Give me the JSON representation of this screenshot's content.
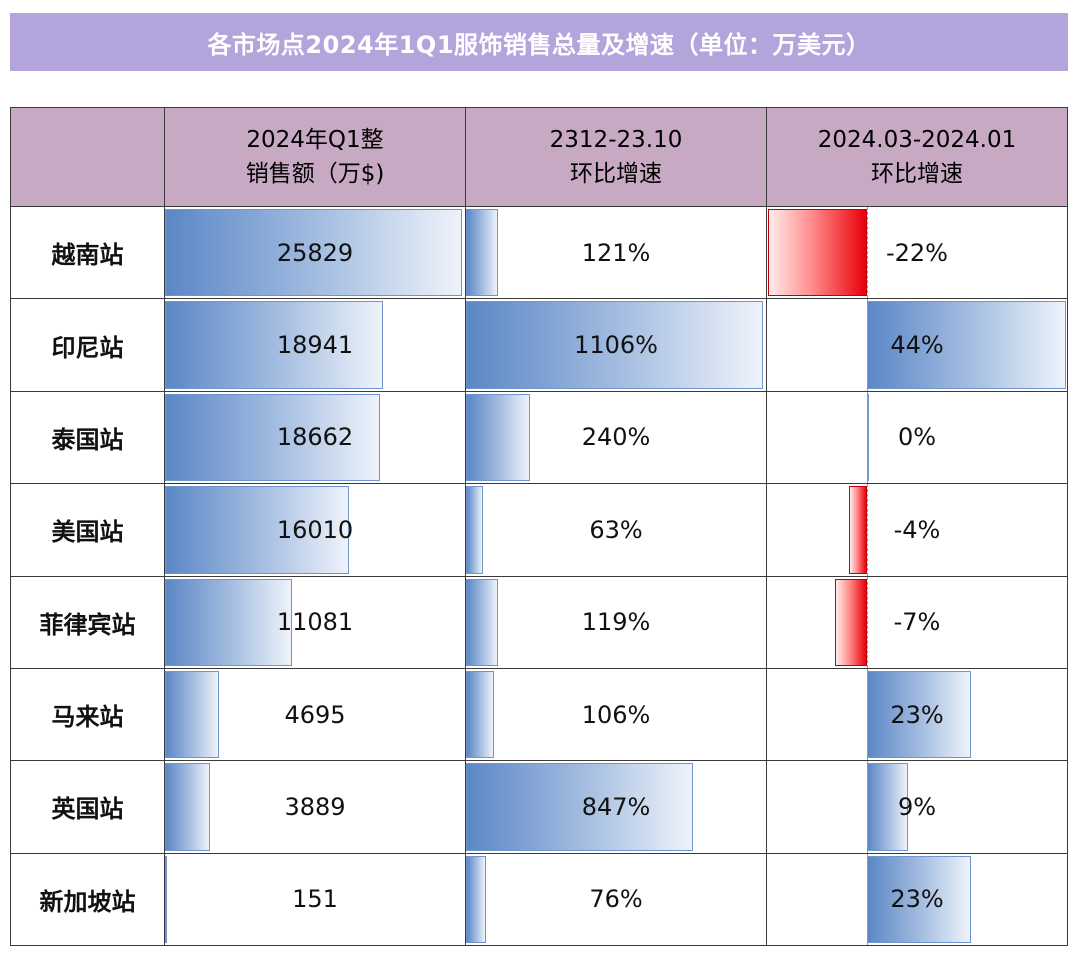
{
  "title": "各市场点2024年1Q1服饰销售总量及增速（单位：万美元）",
  "colors": {
    "title_bg": "#b3a5dc",
    "header_bg": "#c7a9c4",
    "positive_bar": "#5b87c6",
    "negative_bar": "#e8000a"
  },
  "chart_data": {
    "type": "table",
    "title": "各市场点2024年1Q1服饰销售总量及增速（单位：万美元）",
    "columns": [
      {
        "key": "sales",
        "header_line1": "2024年Q1整",
        "header_line2": "销售额（万$)"
      },
      {
        "key": "growth_a",
        "header_line1": "2312-23.10",
        "header_line2": "环比增速"
      },
      {
        "key": "growth_b",
        "header_line1": "2024.03-2024.01",
        "header_line2": "环比增速"
      }
    ],
    "rows": [
      {
        "market": "越南站",
        "sales": 25829,
        "sales_label": "25829",
        "growth_a": 121,
        "growth_a_label": "121%",
        "growth_b": -22,
        "growth_b_label": "-22%"
      },
      {
        "market": "印尼站",
        "sales": 18941,
        "sales_label": "18941",
        "growth_a": 1106,
        "growth_a_label": "1106%",
        "growth_b": 44,
        "growth_b_label": "44%"
      },
      {
        "market": "泰国站",
        "sales": 18662,
        "sales_label": "18662",
        "growth_a": 240,
        "growth_a_label": "240%",
        "growth_b": 0.4,
        "growth_b_label": "0%"
      },
      {
        "market": "美国站",
        "sales": 16010,
        "sales_label": "16010",
        "growth_a": 63,
        "growth_a_label": "63%",
        "growth_b": -4,
        "growth_b_label": "-4%"
      },
      {
        "market": "菲律宾站",
        "sales": 11081,
        "sales_label": "11081",
        "growth_a": 119,
        "growth_a_label": "119%",
        "growth_b": -7,
        "growth_b_label": "-7%"
      },
      {
        "market": "马来站",
        "sales": 4695,
        "sales_label": "4695",
        "growth_a": 106,
        "growth_a_label": "106%",
        "growth_b": 23,
        "growth_b_label": "23%"
      },
      {
        "market": "英国站",
        "sales": 3889,
        "sales_label": "3889",
        "growth_a": 847,
        "growth_a_label": "847%",
        "growth_b": 9,
        "growth_b_label": "9%"
      },
      {
        "market": "新加坡站",
        "sales": 151,
        "sales_label": "151",
        "growth_a": 76,
        "growth_a_label": "76%",
        "growth_b": 23,
        "growth_b_label": "23%"
      }
    ]
  }
}
